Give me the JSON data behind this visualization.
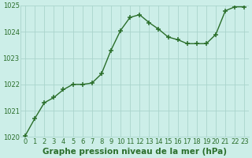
{
  "x": [
    0,
    1,
    2,
    3,
    4,
    5,
    6,
    7,
    8,
    9,
    10,
    11,
    12,
    13,
    14,
    15,
    16,
    17,
    18,
    19,
    20,
    21,
    22,
    23
  ],
  "y": [
    1020.05,
    1020.7,
    1021.3,
    1021.5,
    1021.8,
    1022.0,
    1022.0,
    1022.05,
    1022.4,
    1023.3,
    1024.05,
    1024.55,
    1024.65,
    1024.35,
    1024.1,
    1023.8,
    1023.7,
    1023.55,
    1023.55,
    1023.55,
    1023.9,
    1024.8,
    1024.95,
    1024.95
  ],
  "line_color": "#2a6e2a",
  "marker_color": "#2a6e2a",
  "bg_color": "#cceee8",
  "grid_color": "#aad4cc",
  "title": "Graphe pression niveau de la mer (hPa)",
  "xlabel_ticks": [
    "0",
    "1",
    "2",
    "3",
    "4",
    "5",
    "6",
    "7",
    "8",
    "9",
    "10",
    "11",
    "12",
    "13",
    "14",
    "15",
    "16",
    "17",
    "18",
    "19",
    "20",
    "21",
    "22",
    "23"
  ],
  "ylim": [
    1020,
    1025
  ],
  "yticks": [
    1020,
    1021,
    1022,
    1023,
    1024,
    1025
  ],
  "title_color": "#2a6e2a",
  "title_fontsize": 7.5,
  "tick_fontsize": 6.0,
  "line_width": 1.0,
  "marker_size": 4
}
